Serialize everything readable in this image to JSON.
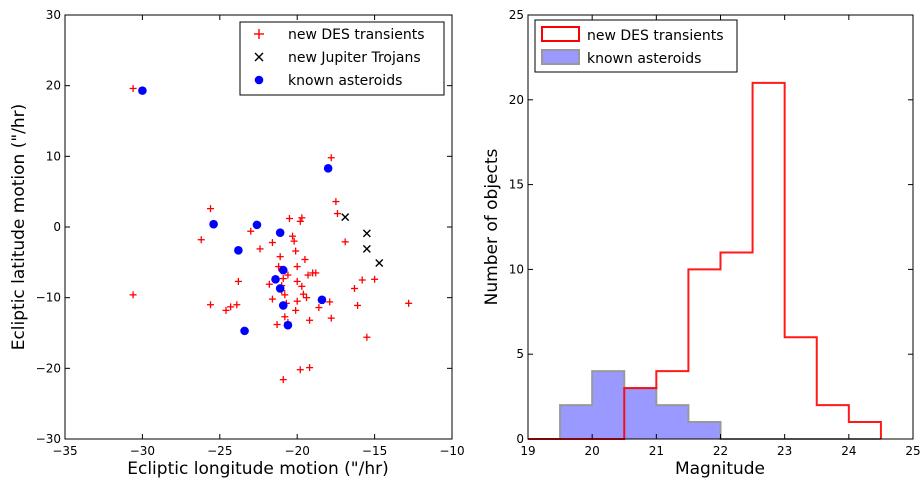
{
  "chart_data": [
    {
      "type": "scatter",
      "title": "",
      "xlabel": "Ecliptic longitude motion (\"/hr)",
      "ylabel": "Ecliptic latitude motion (\"/hr)",
      "xlim": [
        -35,
        -10
      ],
      "ylim": [
        -30,
        30
      ],
      "xticks": [
        "−35",
        "−30",
        "−25",
        "−20",
        "−15",
        "−10"
      ],
      "yticks": [
        "−30",
        "−20",
        "−10",
        "0",
        "10",
        "20",
        "30"
      ],
      "legend_position": "top-right",
      "series": [
        {
          "name": "new DES transients",
          "marker": "+",
          "color": "#ff0000",
          "points": [
            [
              -30.6,
              19.6
            ],
            [
              -30.6,
              -9.6
            ],
            [
              -26.2,
              -1.8
            ],
            [
              -25.6,
              2.6
            ],
            [
              -25.6,
              -11.0
            ],
            [
              -24.6,
              -11.8
            ],
            [
              -24.3,
              -11.3
            ],
            [
              -23.9,
              -11.0
            ],
            [
              -23.8,
              -7.7
            ],
            [
              -23.0,
              -0.6
            ],
            [
              -22.4,
              -3.1
            ],
            [
              -21.8,
              -8.1
            ],
            [
              -21.6,
              -10.2
            ],
            [
              -21.6,
              -2.2
            ],
            [
              -21.3,
              -13.8
            ],
            [
              -21.2,
              -5.6
            ],
            [
              -21.1,
              -4.2
            ],
            [
              -21.0,
              -6.2
            ],
            [
              -21.0,
              -9.0
            ],
            [
              -21.0,
              -8.3
            ],
            [
              -20.9,
              -7.3
            ],
            [
              -20.8,
              -9.6
            ],
            [
              -20.8,
              -12.7
            ],
            [
              -20.7,
              -10.8
            ],
            [
              -20.6,
              -13.5
            ],
            [
              -20.9,
              -21.6
            ],
            [
              -20.6,
              -6.8
            ],
            [
              -20.5,
              1.2
            ],
            [
              -20.3,
              -1.3
            ],
            [
              -20.2,
              -2.0
            ],
            [
              -20.1,
              -3.4
            ],
            [
              -20.0,
              -5.6
            ],
            [
              -20.0,
              -7.7
            ],
            [
              -20.0,
              -10.5
            ],
            [
              -20.1,
              -11.8
            ],
            [
              -19.8,
              0.8
            ],
            [
              -19.7,
              1.3
            ],
            [
              -19.7,
              -8.4
            ],
            [
              -19.8,
              -20.2
            ],
            [
              -19.6,
              -9.5
            ],
            [
              -19.5,
              -4.6
            ],
            [
              -19.4,
              -10.0
            ],
            [
              -19.3,
              -6.8
            ],
            [
              -19.2,
              -13.2
            ],
            [
              -19.2,
              -19.9
            ],
            [
              -19.0,
              -6.5
            ],
            [
              -18.8,
              -6.5
            ],
            [
              -18.6,
              -11.4
            ],
            [
              -17.9,
              -10.6
            ],
            [
              -17.8,
              -12.9
            ],
            [
              -17.8,
              9.8
            ],
            [
              -17.5,
              3.6
            ],
            [
              -17.4,
              1.9
            ],
            [
              -16.9,
              -2.1
            ],
            [
              -16.3,
              -8.7
            ],
            [
              -16.1,
              -11.1
            ],
            [
              -15.8,
              -7.5
            ],
            [
              -15.5,
              -15.6
            ],
            [
              -15.0,
              -7.4
            ],
            [
              -12.8,
              -10.8
            ]
          ]
        },
        {
          "name": "new Jupiter Trojans",
          "marker": "x",
          "color": "#000000",
          "points": [
            [
              -16.9,
              1.4
            ],
            [
              -15.5,
              -0.9
            ],
            [
              -15.5,
              -3.1
            ],
            [
              -14.7,
              -5.1
            ]
          ]
        },
        {
          "name": "known asteroids",
          "marker": "o",
          "color": "#0000ff",
          "points": [
            [
              -30.0,
              19.3
            ],
            [
              -25.4,
              0.4
            ],
            [
              -23.8,
              -3.3
            ],
            [
              -23.4,
              -14.7
            ],
            [
              -22.6,
              0.3
            ],
            [
              -21.4,
              -7.4
            ],
            [
              -21.1,
              -0.8
            ],
            [
              -21.1,
              -8.7
            ],
            [
              -20.9,
              -6.1
            ],
            [
              -20.9,
              -11.1
            ],
            [
              -20.6,
              -13.9
            ],
            [
              -18.4,
              -10.3
            ],
            [
              -18.0,
              8.3
            ]
          ]
        }
      ]
    },
    {
      "type": "bar",
      "style": "step-histogram",
      "title": "",
      "xlabel": "Magnitude",
      "ylabel": "Number of objects",
      "xlim": [
        19,
        25
      ],
      "ylim": [
        0,
        25
      ],
      "xticks": [
        "19",
        "20",
        "21",
        "22",
        "23",
        "24",
        "25"
      ],
      "yticks": [
        "0",
        "5",
        "10",
        "15",
        "20",
        "25"
      ],
      "legend_position": "top-left",
      "bin_edges": [
        19.0,
        19.5,
        20.0,
        20.5,
        21.0,
        21.5,
        22.0,
        22.5,
        23.0,
        23.5,
        24.0,
        24.5
      ],
      "series": [
        {
          "name": "new DES transients",
          "style": "outline",
          "color": "#ff0000",
          "values": [
            0,
            0,
            0,
            3,
            4,
            10,
            11,
            21,
            6,
            2,
            1
          ]
        },
        {
          "name": "known asteroids",
          "style": "filled",
          "color": "#9999ff",
          "edge_color": "#999999",
          "values": [
            0,
            2,
            4,
            3,
            2,
            1,
            0,
            0,
            0,
            0,
            0
          ]
        }
      ]
    }
  ]
}
